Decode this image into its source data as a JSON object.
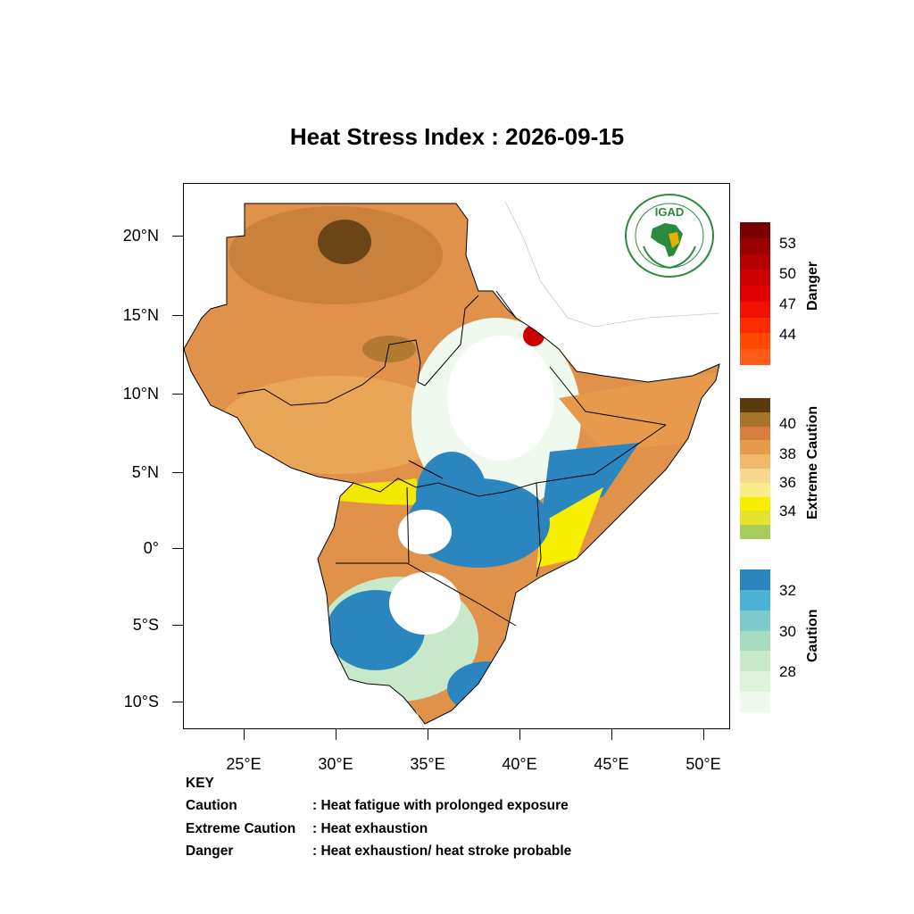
{
  "title": "Heat Stress Index : 2026-09-15",
  "axes": {
    "lat_labels": [
      "20°N",
      "15°N",
      "10°N",
      "5°N",
      "0°",
      "5°S",
      "10°S"
    ],
    "lon_labels": [
      "25°E",
      "30°E",
      "35°E",
      "40°E",
      "45°E",
      "50°E"
    ]
  },
  "colorbars": {
    "danger": {
      "title": "Danger",
      "labels": [
        "53",
        "50",
        "47",
        "44"
      ],
      "colors": [
        "#7a0000",
        "#9a0000",
        "#b40000",
        "#cc0000",
        "#e00000",
        "#f21000",
        "#ff2a00",
        "#ff4a00",
        "#ff5a1a"
      ]
    },
    "extreme": {
      "title": "Extreme Caution",
      "labels": [
        "40",
        "38",
        "36",
        "34"
      ],
      "colors": [
        "#5c3a10",
        "#a8742a",
        "#d77d3e",
        "#e79a4c",
        "#f0b86a",
        "#f7d98e",
        "#fbec8a",
        "#f8ee00",
        "#e6e32a",
        "#a8cc5a"
      ]
    },
    "caution": {
      "title": "Caution",
      "labels": [
        "32",
        "30",
        "28"
      ],
      "colors": [
        "#2b86c0",
        "#4db1d6",
        "#7ccac9",
        "#a6dcbf",
        "#c7e9c9",
        "#def2dc",
        "#f0f9ee"
      ]
    }
  },
  "logo": {
    "text": "IGAD"
  },
  "key": {
    "heading": "KEY",
    "rows": [
      {
        "term": "Caution",
        "desc": ": Heat fatigue with prolonged exposure"
      },
      {
        "term": "Extreme Caution",
        "desc": ": Heat exhaustion"
      },
      {
        "term": "Danger",
        "desc": ": Heat exhaustion/ heat stroke probable"
      }
    ]
  },
  "colors": {
    "caution_blue": "#2b86c0",
    "extreme_orange": "#e79a4c",
    "danger_red": "#cc0000"
  }
}
